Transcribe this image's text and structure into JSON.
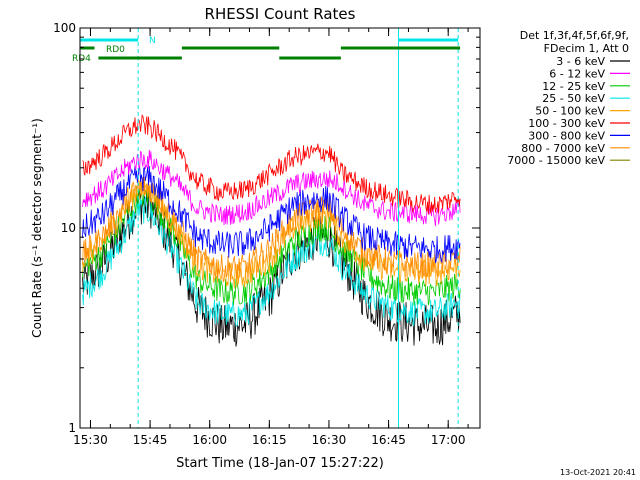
{
  "chart_data": {
    "type": "line",
    "title": "RHESSI Count Rates",
    "xlabel": "Start Time (18-Jan-07 15:27:22)",
    "ylabel": "Count Rate (s⁻¹ detector segment⁻¹)",
    "y_scale": "log",
    "ylim": [
      1,
      100
    ],
    "xlim": [
      "15:27:22",
      "17:08:00"
    ],
    "x_ticks": [
      "15:30",
      "15:45",
      "16:00",
      "16:15",
      "16:30",
      "16:45",
      "17:00"
    ],
    "y_ticks": [
      "1",
      "10",
      "100"
    ],
    "grid": false,
    "legend_position": "top-right",
    "legend_header": [
      "Det 1f,3f,4f,5f,6f,9f,",
      "FDecim 1, Att 0"
    ],
    "x_sample": [
      "15:27",
      "15:33",
      "15:39",
      "15:42",
      "15:45",
      "15:51",
      "15:57",
      "16:03",
      "16:09",
      "16:15",
      "16:21",
      "16:27",
      "16:30",
      "16:33",
      "16:39",
      "16:45",
      "16:51",
      "16:57",
      "17:03"
    ],
    "series": [
      {
        "name": "3 - 6 keV",
        "color": "#000000",
        "values": [
          5.0,
          6.5,
          10.5,
          13.5,
          13.0,
          8.0,
          4.0,
          3.2,
          3.3,
          4.5,
          7.5,
          9.0,
          9.0,
          7.0,
          4.5,
          3.5,
          3.3,
          3.2,
          3.8
        ]
      },
      {
        "name": "6 - 12 keV",
        "color": "#ff00ff",
        "values": [
          13.5,
          15.5,
          20.0,
          22.0,
          22.0,
          17.5,
          12.5,
          11.5,
          12.0,
          14.0,
          16.5,
          17.5,
          17.5,
          16.5,
          13.0,
          12.0,
          11.8,
          11.5,
          12.5
        ]
      },
      {
        "name": "12 - 25 keV",
        "color": "#00cc00",
        "values": [
          6.0,
          7.5,
          11.5,
          14.5,
          14.5,
          9.5,
          5.5,
          4.8,
          4.8,
          6.0,
          8.5,
          10.0,
          10.0,
          8.0,
          6.0,
          5.0,
          4.8,
          4.8,
          5.2
        ]
      },
      {
        "name": "25 - 50 keV",
        "color": "#00e5e5",
        "values": [
          4.5,
          6.0,
          9.5,
          12.5,
          12.0,
          7.5,
          4.2,
          3.7,
          3.7,
          4.8,
          7.0,
          8.5,
          8.5,
          6.5,
          4.7,
          4.0,
          3.8,
          3.8,
          4.3
        ]
      },
      {
        "name": "50 - 100 keV",
        "color": "#ffa500",
        "values": [
          6.5,
          8.5,
          13.0,
          15.5,
          15.5,
          10.5,
          6.5,
          5.8,
          5.8,
          7.0,
          10.0,
          11.5,
          11.5,
          9.0,
          7.0,
          6.2,
          6.0,
          6.0,
          6.5
        ]
      },
      {
        "name": "100 - 300 keV",
        "color": "#ff0000",
        "values": [
          19.0,
          23.0,
          30.0,
          33.0,
          32.0,
          25.0,
          17.0,
          15.0,
          15.5,
          18.5,
          22.5,
          24.0,
          24.0,
          19.0,
          16.0,
          14.5,
          13.5,
          13.0,
          14.5
        ]
      },
      {
        "name": "300 - 800 keV",
        "color": "#0000ff",
        "values": [
          9.5,
          11.5,
          16.0,
          18.0,
          17.5,
          13.0,
          9.0,
          8.2,
          8.3,
          10.0,
          13.0,
          14.0,
          14.0,
          11.5,
          9.0,
          8.3,
          8.0,
          7.8,
          8.2
        ]
      },
      {
        "name": "800 - 7000 keV",
        "color": "#ff8c00",
        "values": [
          7.0,
          9.0,
          13.5,
          16.0,
          16.0,
          11.0,
          7.0,
          6.3,
          6.3,
          7.8,
          11.0,
          12.5,
          12.5,
          10.0,
          7.5,
          6.8,
          6.5,
          6.5,
          7.0
        ]
      },
      {
        "name": "7000 - 15000 keV",
        "color": "#808000",
        "values": []
      }
    ],
    "annotations": {
      "markers": [
        {
          "label": "RD0",
          "color": "#008000"
        },
        {
          "label": "RD4",
          "color": "#008000"
        },
        {
          "label": "N",
          "color": "#00e5e5"
        }
      ],
      "cyan_bars": [
        [
          "15:27:22",
          "15:42:00"
        ],
        [
          "16:47:30",
          "17:02:30"
        ]
      ],
      "green_bars_upper": [
        [
          "15:27:22",
          "15:31:00"
        ],
        [
          "15:53:00",
          "16:17:30"
        ],
        [
          "16:33:00",
          "17:03:00"
        ]
      ],
      "green_bars_lower": [
        [
          "15:32:00",
          "15:53:00"
        ],
        [
          "16:17:30",
          "16:33:00"
        ]
      ],
      "cyan_solid_vlines": [
        "15:27:22",
        "16:47:30"
      ],
      "cyan_dashed_vlines": [
        "15:42:00",
        "17:02:30"
      ]
    }
  },
  "footer": {
    "timestamp": "13-Oct-2021 20:41"
  }
}
